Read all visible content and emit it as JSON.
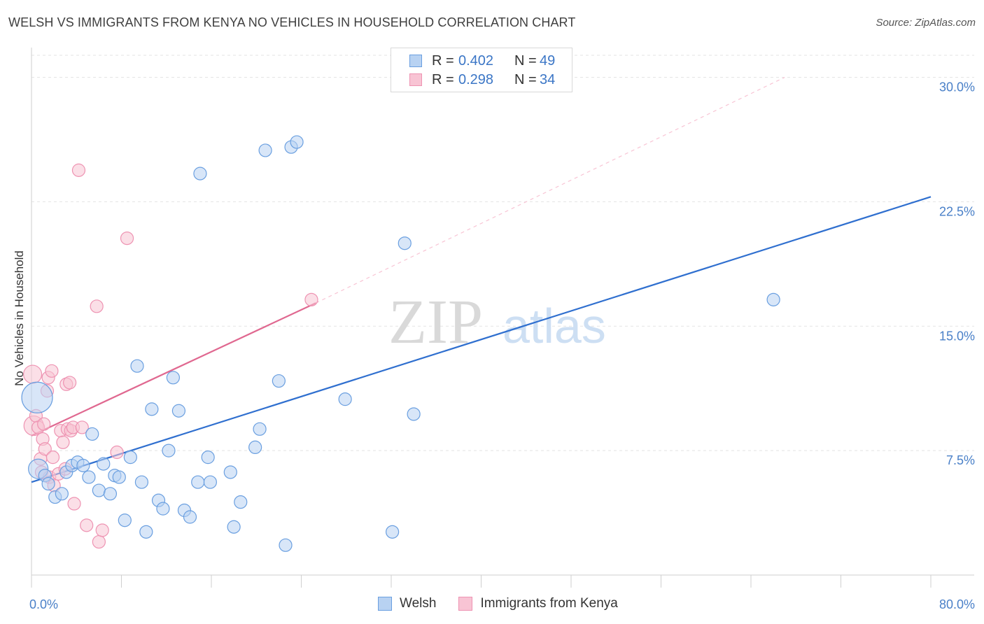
{
  "chart_data": {
    "type": "scatter",
    "title": "WELSH VS IMMIGRANTS FROM KENYA NO VEHICLES IN HOUSEHOLD CORRELATION CHART",
    "source": "Source: ZipAtlas.com",
    "ylabel": "No Vehicles in Household",
    "xlabel": "",
    "xlim": [
      0,
      80
    ],
    "ylim": [
      0,
      31.5
    ],
    "y_ticks": [
      {
        "value": 7.5,
        "label": "7.5%"
      },
      {
        "value": 15.0,
        "label": "15.0%"
      },
      {
        "value": 22.5,
        "label": "22.5%"
      },
      {
        "value": 30.0,
        "label": "30.0%"
      }
    ],
    "x_tick_labels": {
      "min": "0.0%",
      "max": "80.0%"
    },
    "watermark": {
      "zip": "ZIP",
      "atlas": "atlas"
    },
    "legend": {
      "r_label": "R =",
      "n_label": "N ="
    },
    "series": [
      {
        "name": "Welsh",
        "color": "#6a9fe0",
        "fill": "#b8d2f2",
        "line_color": "#2f6fcf",
        "R": "0.402",
        "N": "49",
        "trend": {
          "x0": 0,
          "y0": 5.6,
          "x1": 80,
          "y1": 22.8
        },
        "points": [
          [
            0.5,
            10.7,
            22
          ],
          [
            0.6,
            6.4,
            14
          ],
          [
            1.2,
            6.0,
            9
          ],
          [
            1.5,
            5.5,
            9
          ],
          [
            2.1,
            4.7,
            9
          ],
          [
            2.7,
            4.9,
            9
          ],
          [
            3.1,
            6.2,
            9
          ],
          [
            3.6,
            6.6,
            9
          ],
          [
            4.1,
            6.8,
            9
          ],
          [
            4.6,
            6.6,
            9
          ],
          [
            5.1,
            5.9,
            9
          ],
          [
            5.4,
            8.5,
            9
          ],
          [
            6.0,
            5.1,
            9
          ],
          [
            6.4,
            6.7,
            9
          ],
          [
            7.0,
            4.9,
            9
          ],
          [
            7.4,
            6.0,
            9
          ],
          [
            7.8,
            5.9,
            9
          ],
          [
            8.3,
            3.3,
            9
          ],
          [
            8.8,
            7.1,
            9
          ],
          [
            9.4,
            12.6,
            9
          ],
          [
            9.8,
            5.6,
            9
          ],
          [
            10.2,
            2.6,
            9
          ],
          [
            10.7,
            10.0,
            9
          ],
          [
            11.3,
            4.5,
            9
          ],
          [
            11.7,
            4.0,
            9
          ],
          [
            12.2,
            7.5,
            9
          ],
          [
            12.6,
            11.9,
            9
          ],
          [
            13.1,
            9.9,
            9
          ],
          [
            13.6,
            3.9,
            9
          ],
          [
            14.1,
            3.5,
            9
          ],
          [
            14.8,
            5.6,
            9
          ],
          [
            15.0,
            24.2,
            9
          ],
          [
            15.7,
            7.1,
            9
          ],
          [
            15.9,
            5.6,
            9
          ],
          [
            17.7,
            6.2,
            9
          ],
          [
            18.0,
            2.9,
            9
          ],
          [
            18.6,
            4.4,
            9
          ],
          [
            19.9,
            7.7,
            9
          ],
          [
            20.3,
            8.8,
            9
          ],
          [
            20.8,
            25.6,
            9
          ],
          [
            22.0,
            11.7,
            9
          ],
          [
            22.6,
            1.8,
            9
          ],
          [
            23.1,
            25.8,
            9
          ],
          [
            23.6,
            26.1,
            9
          ],
          [
            27.9,
            10.6,
            9
          ],
          [
            32.1,
            2.6,
            9
          ],
          [
            33.2,
            20.0,
            9
          ],
          [
            34.0,
            9.7,
            9
          ],
          [
            66.0,
            16.6,
            9
          ]
        ]
      },
      {
        "name": "Immigrants from Kenya",
        "color": "#ee93b2",
        "fill": "#f8c4d4",
        "line_color": "#e06890",
        "R": "0.298",
        "N": "34",
        "trend": {
          "x0": 0,
          "y0": 8.4,
          "x1": 25.3,
          "y1": 16.4
        },
        "trend_ext": {
          "x0": 25.3,
          "y0": 16.4,
          "x1": 67.0,
          "y1": 30.0
        },
        "points": [
          [
            0.1,
            12.1,
            13
          ],
          [
            0.2,
            9.0,
            14
          ],
          [
            0.4,
            9.6,
            9
          ],
          [
            0.6,
            8.9,
            9
          ],
          [
            0.8,
            7.0,
            9
          ],
          [
            0.9,
            6.2,
            9
          ],
          [
            1.0,
            8.2,
            9
          ],
          [
            1.1,
            9.1,
            9
          ],
          [
            1.2,
            7.6,
            9
          ],
          [
            1.4,
            11.1,
            9
          ],
          [
            1.5,
            11.9,
            9
          ],
          [
            1.6,
            5.9,
            9
          ],
          [
            1.8,
            12.3,
            9
          ],
          [
            1.9,
            7.1,
            9
          ],
          [
            2.0,
            5.4,
            9
          ],
          [
            2.4,
            6.1,
            9
          ],
          [
            2.6,
            8.7,
            9
          ],
          [
            2.8,
            8.0,
            9
          ],
          [
            3.0,
            6.4,
            9
          ],
          [
            3.1,
            11.5,
            9
          ],
          [
            3.2,
            8.8,
            9
          ],
          [
            3.4,
            11.6,
            9
          ],
          [
            3.5,
            8.7,
            9
          ],
          [
            3.7,
            8.9,
            9
          ],
          [
            3.8,
            4.3,
            9
          ],
          [
            4.2,
            24.4,
            9
          ],
          [
            4.5,
            8.9,
            9
          ],
          [
            4.9,
            3.0,
            9
          ],
          [
            5.8,
            16.2,
            9
          ],
          [
            6.0,
            2.0,
            9
          ],
          [
            6.3,
            2.7,
            9
          ],
          [
            7.6,
            7.4,
            9
          ],
          [
            8.5,
            20.3,
            9
          ],
          [
            24.9,
            16.6,
            9
          ]
        ]
      }
    ]
  }
}
